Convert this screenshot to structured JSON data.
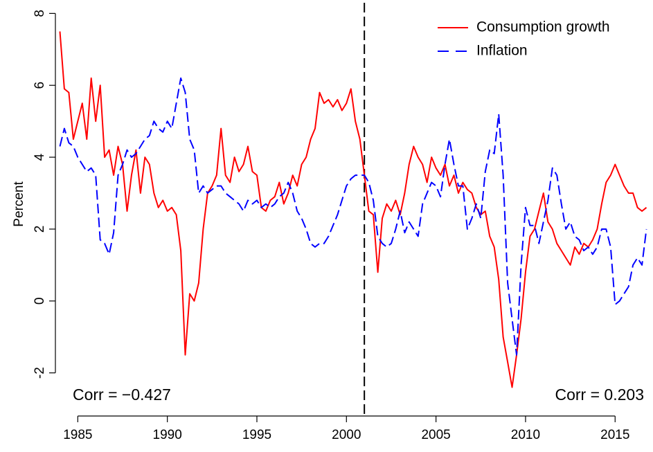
{
  "chart_data": {
    "type": "line",
    "y_label": "Percent",
    "x": [
      1984,
      1984.25,
      1984.5,
      1984.75,
      1985,
      1985.25,
      1985.5,
      1985.75,
      1986,
      1986.25,
      1986.5,
      1986.75,
      1987,
      1987.25,
      1987.5,
      1987.75,
      1988,
      1988.25,
      1988.5,
      1988.75,
      1989,
      1989.25,
      1989.5,
      1989.75,
      1990,
      1990.25,
      1990.5,
      1990.75,
      1991,
      1991.25,
      1991.5,
      1991.75,
      1992,
      1992.25,
      1992.5,
      1992.75,
      1993,
      1993.25,
      1993.5,
      1993.75,
      1994,
      1994.25,
      1994.5,
      1994.75,
      1995,
      1995.25,
      1995.5,
      1995.75,
      1996,
      1996.25,
      1996.5,
      1996.75,
      1997,
      1997.25,
      1997.5,
      1997.75,
      1998,
      1998.25,
      1998.5,
      1998.75,
      1999,
      1999.25,
      1999.5,
      1999.75,
      2000,
      2000.25,
      2000.5,
      2000.75,
      2001,
      2001.25,
      2001.5,
      2001.75,
      2002,
      2002.25,
      2002.5,
      2002.75,
      2003,
      2003.25,
      2003.5,
      2003.75,
      2004,
      2004.25,
      2004.5,
      2004.75,
      2005,
      2005.25,
      2005.5,
      2005.75,
      2006,
      2006.25,
      2006.5,
      2006.75,
      2007,
      2007.25,
      2007.5,
      2007.75,
      2008,
      2008.25,
      2008.5,
      2008.75,
      2009,
      2009.25,
      2009.5,
      2009.75,
      2010,
      2010.25,
      2010.5,
      2010.75,
      2011,
      2011.25,
      2011.5,
      2011.75,
      2012,
      2012.25,
      2012.5,
      2012.75,
      2013,
      2013.25,
      2013.5,
      2013.75,
      2014,
      2014.25,
      2014.5,
      2014.75,
      2015,
      2015.25,
      2015.5,
      2015.75,
      2016,
      2016.25,
      2016.5,
      2016.75
    ],
    "series": [
      {
        "name": "Consumption growth",
        "color": "#ff0000",
        "linestyle": "solid",
        "values": [
          7.5,
          5.9,
          5.8,
          4.5,
          5.0,
          5.5,
          4.5,
          6.2,
          5.0,
          6.0,
          4.0,
          4.2,
          3.5,
          4.3,
          3.8,
          2.5,
          3.5,
          4.2,
          3.0,
          4.0,
          3.8,
          3.0,
          2.6,
          2.8,
          2.5,
          2.6,
          2.4,
          1.4,
          -1.5,
          0.2,
          0.0,
          0.5,
          2.0,
          3.0,
          3.2,
          3.5,
          4.8,
          3.5,
          3.3,
          4.0,
          3.6,
          3.8,
          4.3,
          3.6,
          3.5,
          2.6,
          2.5,
          2.8,
          2.9,
          3.3,
          2.7,
          3.0,
          3.5,
          3.2,
          3.8,
          4.0,
          4.5,
          4.8,
          5.8,
          5.5,
          5.6,
          5.4,
          5.6,
          5.3,
          5.5,
          5.9,
          5.0,
          4.5,
          3.5,
          2.5,
          2.4,
          0.8,
          2.3,
          2.7,
          2.5,
          2.8,
          2.4,
          3.0,
          3.8,
          4.3,
          4.0,
          3.8,
          3.3,
          4.0,
          3.7,
          3.5,
          3.8,
          3.2,
          3.5,
          3.0,
          3.3,
          3.1,
          3.0,
          2.6,
          2.4,
          2.5,
          1.8,
          1.5,
          0.6,
          -1.0,
          -1.7,
          -2.4,
          -1.5,
          -0.5,
          0.8,
          1.8,
          2.0,
          2.5,
          3.0,
          2.2,
          2.0,
          1.6,
          1.4,
          1.2,
          1.0,
          1.5,
          1.3,
          1.6,
          1.5,
          1.7,
          2.0,
          2.7,
          3.3,
          3.5,
          3.8,
          3.5,
          3.2,
          3.0,
          3.0,
          2.6,
          2.5,
          2.6
        ]
      },
      {
        "name": "Inflation",
        "color": "#0000ff",
        "linestyle": "dashed",
        "values": [
          4.3,
          4.8,
          4.4,
          4.3,
          4.0,
          3.8,
          3.6,
          3.7,
          3.5,
          1.7,
          1.6,
          1.3,
          1.9,
          3.5,
          3.8,
          4.2,
          4.0,
          4.1,
          4.3,
          4.5,
          4.6,
          5.0,
          4.8,
          4.7,
          5.0,
          4.8,
          5.5,
          6.2,
          5.8,
          4.5,
          4.2,
          3.0,
          3.2,
          3.0,
          3.1,
          3.2,
          3.2,
          3.0,
          2.9,
          2.8,
          2.7,
          2.5,
          2.8,
          2.7,
          2.8,
          2.6,
          2.7,
          2.6,
          2.7,
          2.9,
          3.0,
          3.3,
          3.0,
          2.5,
          2.3,
          2.0,
          1.6,
          1.5,
          1.6,
          1.6,
          1.8,
          2.1,
          2.4,
          2.8,
          3.2,
          3.4,
          3.5,
          3.5,
          3.5,
          3.3,
          2.8,
          1.8,
          1.6,
          1.5,
          1.6,
          2.0,
          2.5,
          1.9,
          2.2,
          2.0,
          1.8,
          2.7,
          3.0,
          3.3,
          3.2,
          2.9,
          3.8,
          4.5,
          3.8,
          3.2,
          3.2,
          2.0,
          2.3,
          2.7,
          2.3,
          3.6,
          4.2,
          4.1,
          5.2,
          3.5,
          0.5,
          -0.5,
          -1.5,
          1.0,
          2.6,
          2.1,
          2.1,
          1.6,
          2.2,
          2.8,
          3.7,
          3.5,
          2.7,
          2.0,
          2.2,
          1.8,
          1.7,
          1.4,
          1.5,
          1.3,
          1.5,
          2.0,
          2.0,
          1.5,
          -0.1,
          0.0,
          0.2,
          0.4,
          1.0,
          1.2,
          1.0,
          2.0
        ]
      }
    ],
    "xlim": [
      1983.75,
      2017.0
    ],
    "ylim": [
      -3.2,
      8.2
    ],
    "xticks": [
      1985,
      1990,
      1995,
      2000,
      2005,
      2010,
      2015
    ],
    "yticks": [
      -2,
      0,
      2,
      4,
      6,
      8
    ],
    "vline": {
      "x": 2001,
      "linestyle": "dashed",
      "color": "#000000"
    },
    "annotations": [
      "Corr = −0.427",
      "Corr = 0.203"
    ],
    "legend": "top-right"
  }
}
